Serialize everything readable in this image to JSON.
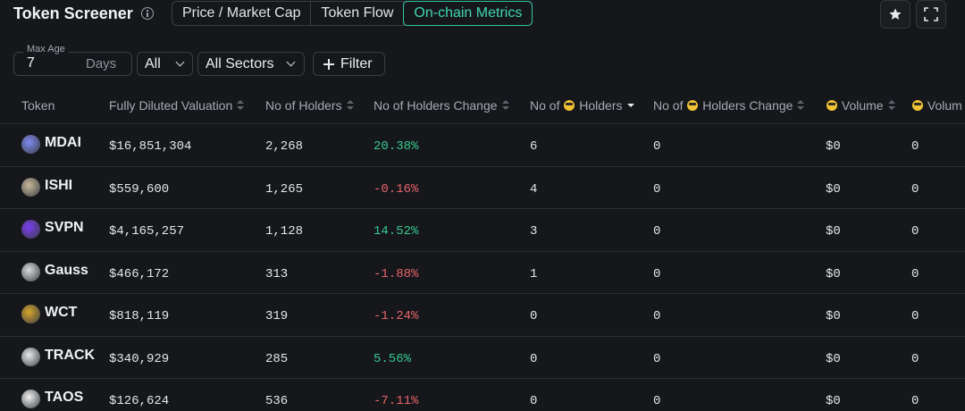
{
  "header": {
    "title": "Token Screener",
    "tabs": [
      {
        "label": "Price / Market Cap",
        "active": false
      },
      {
        "label": "Token Flow",
        "active": false
      },
      {
        "label": "On-chain Metrics",
        "active": true
      }
    ]
  },
  "filters": {
    "max_age_label": "Max Age",
    "max_age_value": "7",
    "max_age_unit": "Days",
    "select_all": "All",
    "select_sectors": "All Sectors",
    "filter_button": "Filter"
  },
  "table": {
    "columns": [
      "Token",
      "Fully Diluted Valuation",
      "No of Holders",
      "No of Holders Change",
      "No of",
      "Holders",
      "No of",
      "Holders Change",
      "Volume",
      "Volum"
    ],
    "rows": [
      {
        "token": "MDAI",
        "fdv": "$16,851,304",
        "holders": "2,268",
        "change": "20.38%",
        "dir": "pos",
        "smart_holders": "6",
        "smart_change": "0",
        "volume": "$0",
        "vol2": "0",
        "icon_color": "#7f8cf0"
      },
      {
        "token": "ISHI",
        "fdv": "$559,600",
        "holders": "1,265",
        "change": "-0.16%",
        "dir": "neg",
        "smart_holders": "4",
        "smart_change": "0",
        "volume": "$0",
        "vol2": "0",
        "icon_color": "#c9b89a"
      },
      {
        "token": "SVPN",
        "fdv": "$4,165,257",
        "holders": "1,128",
        "change": "14.52%",
        "dir": "pos",
        "smart_holders": "3",
        "smart_change": "0",
        "volume": "$0",
        "vol2": "0",
        "icon_color": "#7a3df0"
      },
      {
        "token": "Gauss",
        "fdv": "$466,172",
        "holders": "313",
        "change": "-1.88%",
        "dir": "neg",
        "smart_holders": "1",
        "smart_change": "0",
        "volume": "$0",
        "vol2": "0",
        "icon_color": "#d9dadc"
      },
      {
        "token": "WCT",
        "fdv": "$818,119",
        "holders": "319",
        "change": "-1.24%",
        "dir": "neg",
        "smart_holders": "0",
        "smart_change": "0",
        "volume": "$0",
        "vol2": "0",
        "icon_color": "#d6a52a"
      },
      {
        "token": "TRACK",
        "fdv": "$340,929",
        "holders": "285",
        "change": "5.56%",
        "dir": "pos",
        "smart_holders": "0",
        "smart_change": "0",
        "volume": "$0",
        "vol2": "0",
        "icon_color": "#e9eaec"
      },
      {
        "token": "TAOS",
        "fdv": "$126,624",
        "holders": "536",
        "change": "-7.11%",
        "dir": "neg",
        "smart_holders": "0",
        "smart_change": "0",
        "volume": "$0",
        "vol2": "0",
        "icon_color": "#f2f2f2"
      }
    ]
  }
}
